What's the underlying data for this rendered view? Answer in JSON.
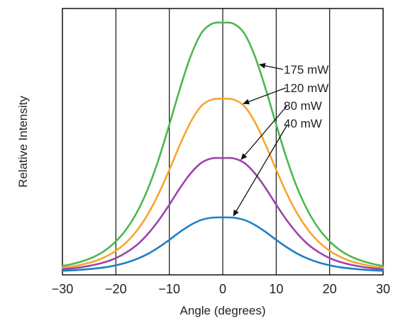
{
  "chart_data": {
    "type": "line",
    "xlabel": "Angle (degrees)",
    "ylabel": "Relative Intensity",
    "xlim": [
      -30,
      30
    ],
    "ylim": [
      0,
      1.0
    ],
    "xticks": [
      -30,
      -20,
      -10,
      0,
      10,
      20,
      30
    ],
    "xtick_labels": [
      "−30",
      "−20",
      "−10",
      "0",
      "10",
      "20",
      "30"
    ],
    "grid": "vertical",
    "x": [
      -30,
      -28,
      -26,
      -24,
      -22,
      -20,
      -18,
      -16,
      -14,
      -12,
      -10,
      -8,
      -6,
      -4,
      -2,
      0,
      2,
      4,
      6,
      8,
      10,
      12,
      14,
      16,
      18,
      20,
      22,
      24,
      26,
      28,
      30
    ],
    "series": [
      {
        "name": "175 mW",
        "color": "#4cb84c",
        "values": [
          0.024,
          0.033,
          0.045,
          0.062,
          0.087,
          0.123,
          0.173,
          0.242,
          0.334,
          0.452,
          0.591,
          0.736,
          0.866,
          0.958,
          0.996,
          1.0,
          0.996,
          0.958,
          0.866,
          0.736,
          0.591,
          0.452,
          0.334,
          0.242,
          0.173,
          0.123,
          0.087,
          0.062,
          0.045,
          0.033,
          0.024
        ]
      },
      {
        "name": "120 mW",
        "color": "#f7a530",
        "values": [
          0.017,
          0.023,
          0.032,
          0.043,
          0.061,
          0.085,
          0.12,
          0.168,
          0.232,
          0.314,
          0.41,
          0.511,
          0.602,
          0.666,
          0.692,
          0.695,
          0.692,
          0.666,
          0.602,
          0.511,
          0.41,
          0.314,
          0.232,
          0.168,
          0.12,
          0.085,
          0.061,
          0.043,
          0.032,
          0.023,
          0.017
        ]
      },
      {
        "name": "80 mW",
        "color": "#9b44a8",
        "values": [
          0.011,
          0.015,
          0.021,
          0.029,
          0.04,
          0.056,
          0.079,
          0.11,
          0.153,
          0.207,
          0.27,
          0.337,
          0.396,
          0.438,
          0.456,
          0.457,
          0.456,
          0.438,
          0.396,
          0.337,
          0.27,
          0.207,
          0.153,
          0.11,
          0.079,
          0.056,
          0.04,
          0.029,
          0.021,
          0.015,
          0.011
        ]
      },
      {
        "name": "40 mW",
        "color": "#1f7fc4",
        "values": [
          0.005,
          0.007,
          0.01,
          0.014,
          0.019,
          0.027,
          0.038,
          0.053,
          0.073,
          0.099,
          0.129,
          0.161,
          0.189,
          0.209,
          0.218,
          0.219,
          0.218,
          0.209,
          0.189,
          0.161,
          0.129,
          0.099,
          0.073,
          0.053,
          0.038,
          0.027,
          0.019,
          0.014,
          0.01,
          0.007,
          0.005
        ]
      }
    ]
  }
}
